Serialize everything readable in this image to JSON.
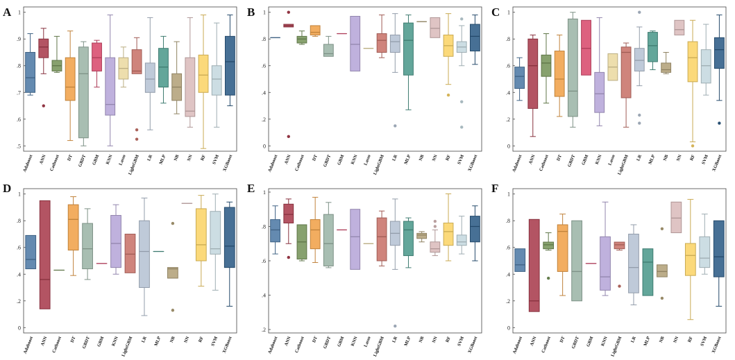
{
  "models": [
    "Adaboost",
    "ANN",
    "Catboost",
    "DT",
    "GBDT",
    "GBM",
    "KNN",
    "Lasso",
    "LightGBM",
    "LR",
    "MLP",
    "NB",
    "NN",
    "RF",
    "SVM",
    "XGBoost"
  ],
  "colors": [
    "#4f7aa5",
    "#a93d4e",
    "#77945a",
    "#f0a24a",
    "#9cb5a8",
    "#d84b6e",
    "#b6a6d8",
    "#ead9a2",
    "#c8736a",
    "#b6c3d4",
    "#4e9a8c",
    "#b3a27a",
    "#dbbcbc",
    "#fbd468",
    "#c5d8df",
    "#2e5d86"
  ],
  "chart_data": [
    {
      "panel": "A",
      "type": "box",
      "ylim": [
        0.48,
        1.02
      ],
      "ticks": [
        0.5,
        0.6,
        0.7,
        0.8,
        0.9,
        1
      ],
      "tick_labels": [
        ".5",
        ".6",
        ".7",
        ".8",
        ".9",
        "1"
      ],
      "categories": [
        "Adaboost",
        "ANN",
        "Catboost",
        "DT",
        "GBDT",
        "GBM",
        "KNN",
        "Lasso",
        "LightGBM",
        "LR",
        "MLP",
        "NB",
        "NN",
        "RF",
        "SVM",
        "XGBoost"
      ],
      "boxes": [
        {
          "min": 0.69,
          "q1": 0.7,
          "med": 0.755,
          "q3": 0.85,
          "max": 0.92,
          "out": []
        },
        {
          "min": 0.77,
          "q1": 0.83,
          "med": 0.87,
          "q3": 0.9,
          "max": 0.94,
          "out": [
            0.65
          ]
        },
        {
          "min": 0.775,
          "q1": 0.78,
          "med": 0.8,
          "q3": 0.82,
          "max": 0.91,
          "out": []
        },
        {
          "min": 0.52,
          "q1": 0.67,
          "med": 0.72,
          "q3": 0.83,
          "max": 0.93,
          "out": []
        },
        {
          "min": 0.5,
          "q1": 0.53,
          "med": 0.77,
          "q3": 0.87,
          "max": 0.89,
          "out": []
        },
        {
          "min": 0.72,
          "q1": 0.78,
          "med": 0.83,
          "q3": 0.885,
          "max": 0.895,
          "out": []
        },
        {
          "min": 0.5,
          "q1": 0.615,
          "med": 0.655,
          "q3": 0.83,
          "max": 0.99,
          "out": []
        },
        {
          "min": 0.72,
          "q1": 0.75,
          "med": 0.79,
          "q3": 0.83,
          "max": 0.87,
          "out": []
        },
        {
          "min": 0.77,
          "q1": 0.77,
          "med": 0.78,
          "q3": 0.86,
          "max": 0.905,
          "out": [
            0.525,
            0.56
          ]
        },
        {
          "min": 0.56,
          "q1": 0.7,
          "med": 0.75,
          "q3": 0.81,
          "max": 0.98,
          "out": []
        },
        {
          "min": 0.66,
          "q1": 0.72,
          "med": 0.795,
          "q3": 0.865,
          "max": 0.91,
          "out": []
        },
        {
          "min": 0.62,
          "q1": 0.67,
          "med": 0.72,
          "q3": 0.77,
          "max": 0.89,
          "out": []
        },
        {
          "min": 0.57,
          "q1": 0.61,
          "med": 0.63,
          "q3": 0.83,
          "max": 0.98,
          "out": []
        },
        {
          "min": 0.49,
          "q1": 0.7,
          "med": 0.765,
          "q3": 0.84,
          "max": 0.99,
          "out": []
        },
        {
          "min": 0.57,
          "q1": 0.69,
          "med": 0.75,
          "q3": 0.8,
          "max": 0.96,
          "out": []
        },
        {
          "min": 0.65,
          "q1": 0.69,
          "med": 0.815,
          "q3": 0.91,
          "max": 0.99,
          "out": []
        }
      ]
    },
    {
      "panel": "B",
      "type": "box",
      "ylim": [
        -0.04,
        1.04
      ],
      "ticks": [
        0,
        0.2,
        0.4,
        0.6,
        0.8,
        1
      ],
      "tick_labels": [
        "0",
        ".2",
        ".4",
        ".6",
        ".8",
        "1"
      ],
      "categories": [
        "Adaboost",
        "ANN",
        "Catboost",
        "DT",
        "GBDT",
        "GBM",
        "KNN",
        "Lasso",
        "LightGBM",
        "LR",
        "MLP",
        "NB",
        "NN",
        "RF",
        "SVM",
        "XGBoost"
      ],
      "boxes": [
        {
          "min": 0.81,
          "q1": 0.81,
          "med": 0.81,
          "q3": 0.81,
          "max": 0.81,
          "out": []
        },
        {
          "min": 0.89,
          "q1": 0.89,
          "med": 0.9,
          "q3": 0.91,
          "max": 0.91,
          "out": [
            1.0,
            0.07
          ]
        },
        {
          "min": 0.76,
          "q1": 0.77,
          "med": 0.8,
          "q3": 0.82,
          "max": 0.86,
          "out": []
        },
        {
          "min": 0.82,
          "q1": 0.83,
          "med": 0.85,
          "q3": 0.9,
          "max": 0.9,
          "out": []
        },
        {
          "min": 0.67,
          "q1": 0.67,
          "med": 0.69,
          "q3": 0.76,
          "max": 0.82,
          "out": []
        },
        {
          "min": 0.84,
          "q1": 0.84,
          "med": 0.84,
          "q3": 0.84,
          "max": 0.84,
          "out": []
        },
        {
          "min": 0.56,
          "q1": 0.56,
          "med": 0.76,
          "q3": 0.97,
          "max": 0.97,
          "out": []
        },
        {
          "min": 0.73,
          "q1": 0.73,
          "med": 0.73,
          "q3": 0.73,
          "max": 0.73,
          "out": []
        },
        {
          "min": 0.66,
          "q1": 0.7,
          "med": 0.79,
          "q3": 0.84,
          "max": 0.98,
          "out": []
        },
        {
          "min": 0.55,
          "q1": 0.7,
          "med": 0.78,
          "q3": 0.83,
          "max": 0.99,
          "out": [
            0.15
          ]
        },
        {
          "min": 0.27,
          "q1": 0.53,
          "med": 0.79,
          "q3": 0.92,
          "max": 0.98,
          "out": []
        },
        {
          "min": 0.93,
          "q1": 0.93,
          "med": 0.93,
          "q3": 0.93,
          "max": 0.93,
          "out": []
        },
        {
          "min": 0.81,
          "q1": 0.81,
          "med": 0.88,
          "q3": 0.96,
          "max": 0.96,
          "out": []
        },
        {
          "min": 0.46,
          "q1": 0.67,
          "med": 0.75,
          "q3": 0.83,
          "max": 0.99,
          "out": [
            0.38
          ]
        },
        {
          "min": 0.6,
          "q1": 0.7,
          "med": 0.74,
          "q3": 0.78,
          "max": 0.9,
          "out": [
            0.95,
            0.33,
            0.14
          ]
        },
        {
          "min": 0.61,
          "q1": 0.71,
          "med": 0.82,
          "q3": 0.91,
          "max": 0.98,
          "out": []
        }
      ]
    },
    {
      "panel": "C",
      "type": "box",
      "ylim": [
        -0.04,
        1.04
      ],
      "ticks": [
        0,
        0.2,
        0.4,
        0.6,
        0.8,
        1
      ],
      "tick_labels": [
        "0",
        ".2",
        ".4",
        ".6",
        ".8",
        "1"
      ],
      "categories": [
        "Adaboost",
        "ANN",
        "Catboost",
        "DT",
        "GBDT",
        "GBM",
        "KNN",
        "Lasso",
        "LightGBM",
        "LR",
        "MLP",
        "NB",
        "NN",
        "RF",
        "SVM",
        "XGBoost"
      ],
      "boxes": [
        {
          "min": 0.34,
          "q1": 0.43,
          "med": 0.52,
          "q3": 0.59,
          "max": 0.66,
          "out": []
        },
        {
          "min": 0.07,
          "q1": 0.28,
          "med": 0.6,
          "q3": 0.8,
          "max": 0.83,
          "out": []
        },
        {
          "min": 0.32,
          "q1": 0.52,
          "med": 0.62,
          "q3": 0.68,
          "max": 0.84,
          "out": []
        },
        {
          "min": 0.22,
          "q1": 0.37,
          "med": 0.5,
          "q3": 0.71,
          "max": 0.83,
          "out": []
        },
        {
          "min": 0.14,
          "q1": 0.22,
          "med": 0.41,
          "q3": 0.95,
          "max": 1.0,
          "out": []
        },
        {
          "min": 0.53,
          "q1": 0.53,
          "med": 0.73,
          "q3": 0.94,
          "max": 0.94,
          "out": []
        },
        {
          "min": 0.15,
          "q1": 0.25,
          "med": 0.39,
          "q3": 0.55,
          "max": 0.96,
          "out": []
        },
        {
          "min": 0.49,
          "q1": 0.49,
          "med": 0.59,
          "q3": 0.69,
          "max": 0.69,
          "out": []
        },
        {
          "min": 0.14,
          "q1": 0.36,
          "med": 0.7,
          "q3": 0.74,
          "max": 0.77,
          "out": []
        },
        {
          "min": 0.45,
          "q1": 0.56,
          "med": 0.64,
          "q3": 0.73,
          "max": 0.89,
          "out": [
            1.0,
            0.23,
            0.17
          ]
        },
        {
          "min": 0.57,
          "q1": 0.63,
          "med": 0.75,
          "q3": 0.85,
          "max": 0.86,
          "out": []
        },
        {
          "min": 0.54,
          "q1": 0.55,
          "med": 0.57,
          "q3": 0.62,
          "max": 0.7,
          "out": []
        },
        {
          "min": 0.83,
          "q1": 0.83,
          "med": 0.87,
          "q3": 0.94,
          "max": 0.94,
          "out": []
        },
        {
          "min": 0.03,
          "q1": 0.48,
          "med": 0.66,
          "q3": 0.78,
          "max": 0.94,
          "out": [
            0.0
          ]
        },
        {
          "min": 0.38,
          "q1": 0.47,
          "med": 0.6,
          "q3": 0.72,
          "max": 0.91,
          "out": []
        },
        {
          "min": 0.34,
          "q1": 0.58,
          "med": 0.72,
          "q3": 0.81,
          "max": 0.98,
          "out": [
            0.17
          ]
        }
      ]
    },
    {
      "panel": "D",
      "type": "box",
      "ylim": [
        -0.04,
        1.04
      ],
      "ticks": [
        0,
        0.2,
        0.4,
        0.6,
        0.8,
        1
      ],
      "tick_labels": [
        "0",
        ".2",
        ".4",
        ".6",
        ".8",
        "1"
      ],
      "categories": [
        "Adaboost",
        "ANN",
        "Catboost",
        "DT",
        "GBDT",
        "GBM",
        "KNN",
        "LightGBM",
        "LR",
        "MLP",
        "NB",
        "NN",
        "RF",
        "SVM",
        "XGBoost"
      ],
      "boxes": [
        {
          "min": 0.44,
          "q1": 0.44,
          "med": 0.51,
          "q3": 0.69,
          "max": 0.69,
          "out": []
        },
        {
          "min": 0.14,
          "q1": 0.14,
          "med": 0.36,
          "q3": 0.95,
          "max": 0.95,
          "out": []
        },
        {
          "min": 0.43,
          "q1": 0.43,
          "med": 0.43,
          "q3": 0.43,
          "max": 0.43,
          "out": []
        },
        {
          "min": 0.39,
          "q1": 0.58,
          "med": 0.81,
          "q3": 0.92,
          "max": 0.98,
          "out": []
        },
        {
          "min": 0.36,
          "q1": 0.44,
          "med": 0.59,
          "q3": 0.78,
          "max": 0.89,
          "out": []
        },
        {
          "min": 0.48,
          "q1": 0.48,
          "med": 0.48,
          "q3": 0.48,
          "max": 0.48,
          "out": []
        },
        {
          "min": 0.4,
          "q1": 0.45,
          "med": 0.63,
          "q3": 0.84,
          "max": 0.92,
          "out": []
        },
        {
          "min": 0.41,
          "q1": 0.41,
          "med": 0.55,
          "q3": 0.7,
          "max": 0.7,
          "out": []
        },
        {
          "min": 0.09,
          "q1": 0.3,
          "med": 0.57,
          "q3": 0.8,
          "max": 0.97,
          "out": []
        },
        {
          "min": 0.57,
          "q1": 0.57,
          "med": 0.57,
          "q3": 0.57,
          "max": 0.57,
          "out": []
        },
        {
          "min": 0.37,
          "q1": 0.37,
          "med": 0.44,
          "q3": 0.45,
          "max": 0.45,
          "out": [
            0.78,
            0.13
          ]
        },
        {
          "min": 0.93,
          "q1": 0.93,
          "med": 0.93,
          "q3": 0.93,
          "max": 0.93,
          "out": []
        },
        {
          "min": 0.31,
          "q1": 0.5,
          "med": 0.62,
          "q3": 0.89,
          "max": 0.99,
          "out": []
        },
        {
          "min": 0.28,
          "q1": 0.55,
          "med": 0.59,
          "q3": 0.87,
          "max": 1.0,
          "out": []
        },
        {
          "min": 0.16,
          "q1": 0.45,
          "med": 0.61,
          "q3": 0.9,
          "max": 0.94,
          "out": []
        }
      ]
    },
    {
      "panel": "E",
      "type": "box",
      "ylim": [
        0.18,
        1.02
      ],
      "ticks": [
        0.2,
        0.4,
        0.6,
        0.8,
        1
      ],
      "tick_labels": [
        ".2",
        ".4",
        ".6",
        ".8",
        "1"
      ],
      "categories": [
        "Adaboost",
        "ANN",
        "Catboost",
        "DT",
        "GBDT",
        "GBM",
        "KNN",
        "Lasso",
        "LightGBM",
        "LR",
        "MLP",
        "NB",
        "NN",
        "RF",
        "SVM",
        "XGBoost"
      ],
      "boxes": [
        {
          "min": 0.64,
          "q1": 0.71,
          "med": 0.78,
          "q3": 0.84,
          "max": 0.92,
          "out": []
        },
        {
          "min": 0.7,
          "q1": 0.82,
          "med": 0.87,
          "q3": 0.93,
          "max": 0.96,
          "out": [
            0.62
          ]
        },
        {
          "min": 0.6,
          "q1": 0.61,
          "med": 0.71,
          "q3": 0.81,
          "max": 0.81,
          "out": []
        },
        {
          "min": 0.59,
          "q1": 0.67,
          "med": 0.78,
          "q3": 0.84,
          "max": 0.97,
          "out": []
        },
        {
          "min": 0.56,
          "q1": 0.57,
          "med": 0.7,
          "q3": 0.87,
          "max": 0.94,
          "out": []
        },
        {
          "min": 0.78,
          "q1": 0.78,
          "med": 0.78,
          "q3": 0.78,
          "max": 0.78,
          "out": []
        },
        {
          "min": 0.55,
          "q1": 0.55,
          "med": 0.74,
          "q3": 0.9,
          "max": 0.9,
          "out": []
        },
        {
          "min": 0.7,
          "q1": 0.7,
          "med": 0.7,
          "q3": 0.7,
          "max": 0.7,
          "out": []
        },
        {
          "min": 0.57,
          "q1": 0.6,
          "med": 0.74,
          "q3": 0.85,
          "max": 0.89,
          "out": []
        },
        {
          "min": 0.55,
          "q1": 0.69,
          "med": 0.76,
          "q3": 0.83,
          "max": 0.96,
          "out": [
            0.22
          ]
        },
        {
          "min": 0.56,
          "q1": 0.63,
          "med": 0.78,
          "q3": 0.83,
          "max": 0.85,
          "out": []
        },
        {
          "min": 0.71,
          "q1": 0.73,
          "med": 0.75,
          "q3": 0.76,
          "max": 0.77,
          "out": []
        },
        {
          "min": 0.63,
          "q1": 0.65,
          "med": 0.67,
          "q3": 0.71,
          "max": 0.78,
          "out": [
            0.83,
            0.8
          ]
        },
        {
          "min": 0.6,
          "q1": 0.69,
          "med": 0.77,
          "q3": 0.82,
          "max": 0.99,
          "out": []
        },
        {
          "min": 0.64,
          "q1": 0.69,
          "med": 0.71,
          "q3": 0.75,
          "max": 0.86,
          "out": []
        },
        {
          "min": 0.6,
          "q1": 0.71,
          "med": 0.8,
          "q3": 0.86,
          "max": 0.92,
          "out": []
        }
      ]
    },
    {
      "panel": "F",
      "type": "box",
      "ylim": [
        -0.04,
        1.04
      ],
      "ticks": [
        0,
        0.2,
        0.4,
        0.6,
        0.8,
        1
      ],
      "tick_labels": [
        "0",
        ".2",
        ".4",
        ".6",
        ".8",
        "1"
      ],
      "categories": [
        "Adaboost",
        "ANN",
        "Catboost",
        "DT",
        "GBDT",
        "GBM",
        "KNN",
        "LightGBM",
        "LR",
        "MLP",
        "NB",
        "NN",
        "RF",
        "SVM",
        "XGBoost"
      ],
      "boxes": [
        {
          "min": 0.42,
          "q1": 0.42,
          "med": 0.47,
          "q3": 0.59,
          "max": 0.59,
          "out": []
        },
        {
          "min": 0.12,
          "q1": 0.12,
          "med": 0.2,
          "q3": 0.81,
          "max": 0.81,
          "out": []
        },
        {
          "min": 0.58,
          "q1": 0.59,
          "med": 0.62,
          "q3": 0.64,
          "max": 0.71,
          "out": [
            0.37
          ]
        },
        {
          "min": 0.24,
          "q1": 0.42,
          "med": 0.72,
          "q3": 0.77,
          "max": 0.85,
          "out": []
        },
        {
          "min": 0.2,
          "q1": 0.2,
          "med": 0.42,
          "q3": 0.8,
          "max": 0.8,
          "out": []
        },
        {
          "min": 0.48,
          "q1": 0.48,
          "med": 0.48,
          "q3": 0.48,
          "max": 0.48,
          "out": []
        },
        {
          "min": 0.24,
          "q1": 0.28,
          "med": 0.38,
          "q3": 0.68,
          "max": 0.94,
          "out": []
        },
        {
          "min": 0.58,
          "q1": 0.59,
          "med": 0.62,
          "q3": 0.64,
          "max": 0.64,
          "out": [
            0.31
          ]
        },
        {
          "min": 0.17,
          "q1": 0.26,
          "med": 0.45,
          "q3": 0.7,
          "max": 0.77,
          "out": []
        },
        {
          "min": 0.24,
          "q1": 0.24,
          "med": 0.49,
          "q3": 0.59,
          "max": 0.59,
          "out": []
        },
        {
          "min": 0.38,
          "q1": 0.38,
          "med": 0.42,
          "q3": 0.47,
          "max": 0.47,
          "out": [
            0.74,
            0.22
          ]
        },
        {
          "min": 0.71,
          "q1": 0.71,
          "med": 0.82,
          "q3": 0.94,
          "max": 0.94,
          "out": []
        },
        {
          "min": 0.06,
          "q1": 0.39,
          "med": 0.54,
          "q3": 0.63,
          "max": 0.96,
          "out": []
        },
        {
          "min": 0.4,
          "q1": 0.45,
          "med": 0.52,
          "q3": 0.68,
          "max": 0.85,
          "out": []
        },
        {
          "min": 0.16,
          "q1": 0.38,
          "med": 0.53,
          "q3": 0.8,
          "max": 0.8,
          "out": []
        }
      ]
    }
  ]
}
